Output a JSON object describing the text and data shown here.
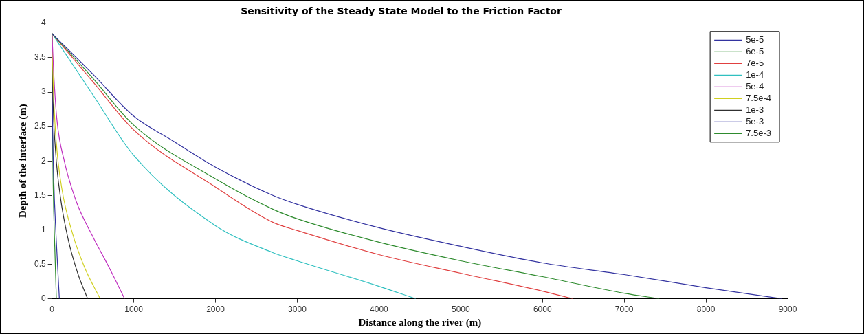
{
  "chart_data": {
    "type": "line",
    "title": "Sensitivity of the Steady State Model to the Friction Factor",
    "xlabel": "Distance along the river (m)",
    "ylabel": "Depth of the interface (m)",
    "xlim": [
      0,
      9000
    ],
    "xticks": [
      0,
      1000,
      2000,
      3000,
      4000,
      5000,
      6000,
      7000,
      8000,
      9000
    ],
    "ylim": [
      0,
      4
    ],
    "yticks": [
      0,
      0.5,
      1,
      1.5,
      2,
      2.5,
      3,
      3.5,
      4
    ],
    "grid": false,
    "legend": "top right",
    "marker": "none",
    "line_style": "solid",
    "series": [
      {
        "name": "5e-5",
        "color": "#3333a0",
        "x": [
          0,
          500,
          1000,
          1455,
          2000,
          2700,
          3000,
          4000,
          5000,
          6000,
          7000,
          8000,
          8930
        ],
        "values": [
          3.85,
          3.26,
          2.65,
          2.31,
          1.91,
          1.5,
          1.37,
          1.03,
          0.76,
          0.52,
          0.35,
          0.16,
          0
        ]
      },
      {
        "name": "6e-5",
        "color": "#2e8b2e",
        "x": [
          0,
          500,
          1000,
          2000,
          2700,
          3000,
          4000,
          5000,
          6000,
          7000,
          7430
        ],
        "values": [
          3.85,
          3.2,
          2.52,
          1.74,
          1.3,
          1.16,
          0.82,
          0.55,
          0.32,
          0.08,
          0
        ]
      },
      {
        "name": "7e-5",
        "color": "#e04040",
        "x": [
          0,
          500,
          1000,
          2000,
          2700,
          3000,
          4000,
          5000,
          6000,
          6370
        ],
        "values": [
          3.85,
          3.15,
          2.45,
          1.62,
          1.11,
          0.99,
          0.64,
          0.37,
          0.11,
          0
        ]
      },
      {
        "name": "1e-4",
        "color": "#30c0c0",
        "x": [
          0,
          500,
          1000,
          2000,
          2700,
          3000,
          4000,
          4450
        ],
        "values": [
          3.85,
          2.96,
          2.08,
          1.06,
          0.67,
          0.55,
          0.18,
          0
        ]
      },
      {
        "name": "5e-4",
        "color": "#c030c0",
        "x": [
          0,
          20,
          60,
          150,
          300,
          500,
          700,
          888
        ],
        "values": [
          3.85,
          3.3,
          2.6,
          2.0,
          1.4,
          0.9,
          0.45,
          0
        ]
      },
      {
        "name": "7.5e-4",
        "color": "#d0d020",
        "x": [
          0,
          15,
          50,
          120,
          250,
          400,
          589
        ],
        "values": [
          3.85,
          3.1,
          2.3,
          1.6,
          0.95,
          0.45,
          0
        ]
      },
      {
        "name": "1e-3",
        "color": "#303030",
        "x": [
          0,
          10,
          40,
          100,
          200,
          320,
          436
        ],
        "values": [
          3.85,
          3.0,
          2.2,
          1.5,
          0.85,
          0.35,
          0
        ]
      },
      {
        "name": "5e-3",
        "color": "#3333a0",
        "x": [
          0,
          5,
          20,
          50,
          90
        ],
        "values": [
          3.85,
          2.8,
          1.8,
          0.9,
          0
        ]
      },
      {
        "name": "7.5e-3",
        "color": "#2e8b2e",
        "x": [
          0,
          5,
          15,
          35,
          53
        ],
        "values": [
          3.85,
          2.6,
          1.6,
          0.7,
          0
        ]
      }
    ]
  }
}
